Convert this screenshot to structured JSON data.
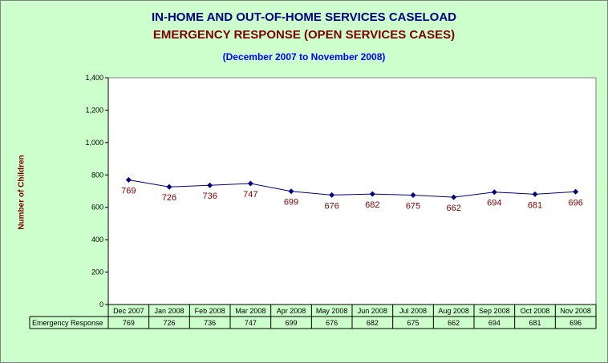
{
  "titles": {
    "line1": "IN-HOME AND OUT-OF-HOME SERVICES CASELOAD",
    "line2": "EMERGENCY RESPONSE (OPEN SERVICES CASES)",
    "line3": "(December 2007 to November 2008)"
  },
  "colors": {
    "background": "#ccffcc",
    "plot_area": "#ffffff",
    "line": "#000080",
    "marker": "#000080",
    "data_label": "#800000",
    "title1": "#000080",
    "title2": "#800000",
    "title3": "#0000ff",
    "ylabel": "#800000"
  },
  "chart_data": {
    "type": "line",
    "title": "IN-HOME AND OUT-OF-HOME SERVICES CASELOAD",
    "subtitle": "EMERGENCY RESPONSE (OPEN SERVICES CASES)",
    "ylabel": "Number of Children",
    "xlabel": "",
    "categories": [
      "Dec 2007",
      "Jan 2008",
      "Feb 2008",
      "Mar 2008",
      "Apr 2008",
      "May 2008",
      "Jun 2008",
      "Jul 2008",
      "Aug 2008",
      "Sep 2008",
      "Oct 2008",
      "Nov 2008"
    ],
    "series": [
      {
        "name": "Emergency Response",
        "values": [
          769,
          726,
          736,
          747,
          699,
          676,
          682,
          675,
          662,
          694,
          681,
          696
        ]
      }
    ],
    "ylim": [
      0,
      1400
    ],
    "yticks": [
      0,
      200,
      400,
      600,
      800,
      1000,
      1200,
      1400
    ],
    "ytick_labels": [
      "0",
      "200",
      "400",
      "600",
      "800",
      "1,000",
      "1,200",
      "1,400"
    ],
    "data_table": true,
    "grid": false,
    "legend": "none"
  }
}
